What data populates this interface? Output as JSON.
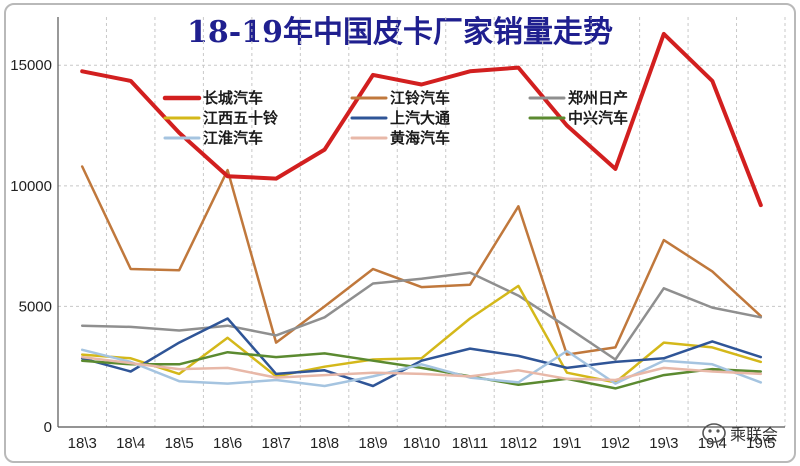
{
  "chart_data": {
    "type": "line",
    "title": "18-19年中国皮卡厂家销量走势",
    "categories": [
      "18\\3",
      "18\\4",
      "18\\5",
      "18\\6",
      "18\\7",
      "18\\8",
      "18\\9",
      "18\\10",
      "18\\11",
      "18\\12",
      "19\\1",
      "19\\2",
      "19\\3",
      "19\\4",
      "19\\5"
    ],
    "y_ticks": [
      "0",
      "5000",
      "10000",
      "15000"
    ],
    "ylim": [
      0,
      17000
    ],
    "grid": true,
    "legend_position": "top",
    "series": [
      {
        "name": "长城汽车",
        "color": "#d21f1f",
        "width": 4,
        "values": [
          14750,
          14350,
          12200,
          10400,
          10300,
          11500,
          14600,
          14200,
          14750,
          14900,
          12500,
          10700,
          16300,
          14350,
          9200
        ]
      },
      {
        "name": "江铃汽车",
        "color": "#c0783c",
        "width": 2.5,
        "values": [
          10800,
          6550,
          6500,
          10650,
          3500,
          5000,
          6550,
          5800,
          5900,
          9150,
          3000,
          3300,
          7750,
          6450,
          4600
        ]
      },
      {
        "name": "郑州日产",
        "color": "#8f8f8f",
        "width": 2.5,
        "values": [
          4200,
          4150,
          4000,
          4200,
          3800,
          4550,
          5950,
          6150,
          6400,
          5450,
          4150,
          2800,
          5750,
          4950,
          4550
        ]
      },
      {
        "name": "江西五十铃",
        "color": "#d4b81a",
        "width": 2.5,
        "values": [
          3000,
          2850,
          2200,
          3700,
          2100,
          2500,
          2800,
          2850,
          4500,
          5850,
          2250,
          1850,
          3500,
          3300,
          2700
        ]
      },
      {
        "name": "上汽大通",
        "color": "#2f5597",
        "width": 2.5,
        "values": [
          2850,
          2300,
          3500,
          4500,
          2200,
          2350,
          1700,
          2750,
          3250,
          2950,
          2450,
          2700,
          2850,
          3550,
          2900
        ]
      },
      {
        "name": "中兴汽车",
        "color": "#5b8a30",
        "width": 2.5,
        "values": [
          2750,
          2600,
          2600,
          3100,
          2900,
          3050,
          2750,
          2450,
          2100,
          1750,
          2000,
          1600,
          2150,
          2400,
          2300
        ]
      },
      {
        "name": "江淮汽车",
        "color": "#a5c4e0",
        "width": 2.5,
        "values": [
          3200,
          2700,
          1900,
          1800,
          1950,
          1700,
          2100,
          2600,
          2050,
          1850,
          3150,
          1800,
          2750,
          2600,
          1850
        ]
      },
      {
        "name": "黄海汽车",
        "color": "#e8b8a8",
        "width": 2.5,
        "values": [
          2900,
          2650,
          2400,
          2450,
          2050,
          2150,
          2250,
          2200,
          2100,
          2350,
          2000,
          1950,
          2450,
          2300,
          2200
        ]
      }
    ]
  },
  "watermark": {
    "text": "乘联会",
    "icon": "wechat-bubble-icon"
  }
}
